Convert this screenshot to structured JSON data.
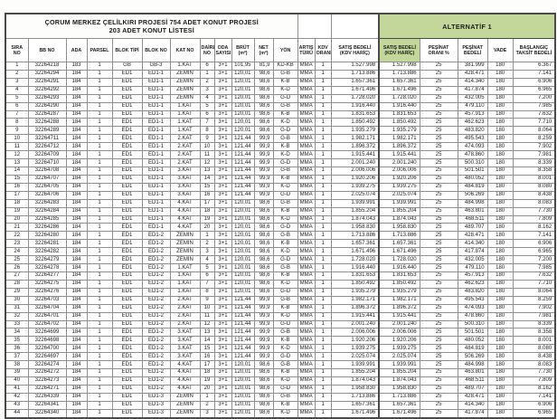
{
  "colors": {
    "alternatif_green": "#c4d79b",
    "border_dark": "#4a4a4a"
  },
  "header": {
    "title_line1": "ÇORUM MERKEZ ÇELİLKIRI PROJESİ 754 ADET KONUT PROJESİ",
    "title_line2": "203 ADET KONUT LİSTESİ",
    "alternatif_label": "ALTERNATİF 1"
  },
  "table": {
    "columns": [
      "SIRA NO",
      "BB NO",
      "ADA",
      "PARSEL",
      "BLOK TİPİ",
      "BLOK NO",
      "KAT NO",
      "DAİRE NO",
      "ODA SAYISI",
      "BRÜT (m²)",
      "NET (m²)",
      "YÖN",
      "ARTIŞ TÜRÜ",
      "KDV ORANI",
      "SATIŞ BEDELİ (KDV HARİÇ)",
      "SATIŞ BEDELİ (KDV HARİÇ)",
      "PEŞİNAT ORANI %",
      "PEŞİNAT BEDELİ",
      "VADE",
      "BAŞLANGIÇ TAKSİT BEDELİ"
    ],
    "column_keys": [
      "sira-no",
      "bb-no",
      "ada",
      "parsel",
      "blok-tipi",
      "blok-no",
      "kat-no",
      "daire-no",
      "oda-sayisi",
      "brut-m2",
      "net-m2",
      "yon",
      "artis-turu",
      "kdv-orani",
      "satis-bedeli-kdv-haric",
      "alt1-satis-bedeli-kdv-haric",
      "pesinat-orani",
      "pesinat-bedeli",
      "vade",
      "baslangic-taksit-bedeli"
    ],
    "numeric_columns": [
      9,
      10,
      14,
      15,
      17,
      19
    ],
    "alt_column": 15,
    "rows": [
      [
        "1",
        "32264218",
        "183",
        "1",
        "GB",
        "GB-3",
        "1.KAT",
        "6",
        "3+1",
        "101,95",
        "81,9",
        "KD-KB",
        "MMA",
        "1",
        "1.527.998",
        "1.527.998",
        "25",
        "381.999",
        "180",
        "6.367"
      ],
      [
        "2",
        "32264294",
        "184",
        "1",
        "ED1",
        "ED1-1",
        "ZEMİN",
        "1",
        "3+1",
        "120,01",
        "98,6",
        "G-B",
        "MMA",
        "1",
        "1.713.886",
        "1.713.886",
        "25",
        "428.471",
        "180",
        "7.141"
      ],
      [
        "3",
        "32264291",
        "184",
        "1",
        "ED1",
        "ED1-1",
        "ZEMİN",
        "2",
        "3+1",
        "120,01",
        "98,6",
        "K-B",
        "MMA",
        "1",
        "1.657.361",
        "1.657.361",
        "25",
        "414.340",
        "180",
        "6.906"
      ],
      [
        "4",
        "32264292",
        "184",
        "1",
        "ED1",
        "ED1-1",
        "ZEMİN",
        "3",
        "3+1",
        "120,01",
        "98,6",
        "K-D",
        "MMA",
        "1",
        "1.671.496",
        "1.671.496",
        "25",
        "417.874",
        "180",
        "6.965"
      ],
      [
        "5",
        "32264293",
        "184",
        "1",
        "ED1",
        "ED1-1",
        "ZEMİN",
        "4",
        "3+1",
        "120,01",
        "98,6",
        "G-D",
        "MMA",
        "1",
        "1.728.020",
        "1.728.020",
        "25",
        "432.005",
        "180",
        "7.200"
      ],
      [
        "6",
        "32264290",
        "184",
        "1",
        "ED1",
        "ED1-1",
        "1.KAT",
        "5",
        "3+1",
        "120,01",
        "98,6",
        "G-B",
        "MMA",
        "1",
        "1.916.440",
        "1.916.440",
        "25",
        "479.110",
        "180",
        "7.985"
      ],
      [
        "7",
        "32264287",
        "184",
        "1",
        "ED1",
        "ED1-1",
        "1.KAT",
        "6",
        "3+1",
        "120,01",
        "98,6",
        "K-B",
        "MMA",
        "1",
        "1.831.653",
        "1.831.653",
        "25",
        "457.913",
        "180",
        "7.632"
      ],
      [
        "8",
        "32264288",
        "184",
        "1",
        "ED1",
        "ED1-1",
        "1.KAT",
        "7",
        "3+1",
        "120,01",
        "98,6",
        "K-D",
        "MMA",
        "1",
        "1.850.492",
        "1.850.492",
        "25",
        "462.623",
        "180",
        "7.710"
      ],
      [
        "9",
        "32264289",
        "184",
        "1",
        "ED1",
        "ED1-1",
        "1.KAT",
        "8",
        "3+1",
        "120,01",
        "98,6",
        "G-D",
        "MMA",
        "1",
        "1.935.279",
        "1.935.279",
        "25",
        "483.820",
        "180",
        "8.064"
      ],
      [
        "10",
        "32264711",
        "184",
        "1",
        "ED1",
        "ED1-1",
        "2.KAT",
        "9",
        "3+1",
        "121,44",
        "99,9",
        "G-B",
        "MMA",
        "1",
        "1.982.171",
        "1.982.171",
        "25",
        "495.543",
        "180",
        "8.259"
      ],
      [
        "11",
        "32264712",
        "184",
        "1",
        "ED1",
        "ED1-1",
        "2.KAT",
        "10",
        "3+1",
        "121,44",
        "99,9",
        "K-B",
        "MMA",
        "1",
        "1.896.372",
        "1.896.372",
        "25",
        "474.093",
        "180",
        "7.902"
      ],
      [
        "12",
        "32264709",
        "184",
        "1",
        "ED1",
        "ED1-1",
        "2.KAT",
        "11",
        "3+1",
        "121,44",
        "99,9",
        "K-D",
        "MMA",
        "1",
        "1.915.441",
        "1.915.441",
        "25",
        "478.860",
        "180",
        "7.981"
      ],
      [
        "13",
        "32264710",
        "184",
        "1",
        "ED1",
        "ED1-1",
        "2.KAT",
        "12",
        "3+1",
        "121,44",
        "99,9",
        "G-D",
        "MMA",
        "1",
        "2.001.240",
        "2.001.240",
        "25",
        "500.310",
        "180",
        "8.339"
      ],
      [
        "14",
        "32264708",
        "184",
        "1",
        "ED1",
        "ED1-1",
        "3.KAT",
        "13",
        "3+1",
        "121,44",
        "99,9",
        "G-B",
        "MMA",
        "1",
        "2.006.006",
        "2.006.006",
        "25",
        "501.501",
        "180",
        "8.358"
      ],
      [
        "15",
        "32264707",
        "184",
        "1",
        "ED1",
        "ED1-1",
        "3.KAT",
        "14",
        "3+1",
        "121,44",
        "99,9",
        "K-B",
        "MMA",
        "1",
        "1.920.206",
        "1.920.206",
        "25",
        "480.052",
        "180",
        "8.001"
      ],
      [
        "16",
        "32264705",
        "184",
        "1",
        "ED1",
        "ED1-1",
        "3.KAT",
        "15",
        "3+1",
        "121,44",
        "99,9",
        "K-D",
        "MMA",
        "1",
        "1.939.275",
        "1.939.275",
        "25",
        "484.819",
        "180",
        "8.080"
      ],
      [
        "17",
        "32264706",
        "184",
        "1",
        "ED1",
        "ED1-1",
        "3.KAT",
        "16",
        "3+1",
        "121,44",
        "99,9",
        "G-D",
        "MMA",
        "1",
        "2.025.074",
        "2.025.074",
        "25",
        "506.269",
        "180",
        "8.438"
      ],
      [
        "18",
        "32264283",
        "184",
        "1",
        "ED1",
        "ED1-1",
        "4.KAT",
        "17",
        "3+1",
        "120,01",
        "98,6",
        "G-B",
        "MMA",
        "1",
        "1.939.991",
        "1.939.991",
        "25",
        "484.998",
        "180",
        "8.083"
      ],
      [
        "19",
        "32264284",
        "184",
        "1",
        "ED1",
        "ED1-1",
        "4.KAT",
        "18",
        "3+1",
        "120,01",
        "98,6",
        "K-B",
        "MMA",
        "1",
        "1.855.204",
        "1.855.204",
        "25",
        "463.801",
        "180",
        "7.730"
      ],
      [
        "20",
        "32264285",
        "184",
        "1",
        "ED1",
        "ED1-1",
        "4.KAT",
        "19",
        "3+1",
        "120,01",
        "98,6",
        "K-D",
        "MMA",
        "1",
        "1.874.043",
        "1.874.043",
        "25",
        "468.511",
        "180",
        "7.809"
      ],
      [
        "21",
        "32264286",
        "184",
        "1",
        "ED1",
        "ED1-1",
        "4.KAT",
        "20",
        "3+1",
        "120,01",
        "98,6",
        "G-D",
        "MMA",
        "1",
        "1.958.830",
        "1.958.830",
        "25",
        "489.707",
        "180",
        "8.162"
      ],
      [
        "22",
        "32264280",
        "184",
        "1",
        "ED1",
        "ED1-2",
        "ZEMİN",
        "1",
        "3+1",
        "120,01",
        "98,6",
        "G-B",
        "MMA",
        "1",
        "1.713.886",
        "1.713.886",
        "25",
        "428.471",
        "180",
        "7.141"
      ],
      [
        "23",
        "32264281",
        "184",
        "1",
        "ED1",
        "ED1-2",
        "ZEMİN",
        "2",
        "3+1",
        "120,01",
        "98,6",
        "K-B",
        "MMA",
        "1",
        "1.657.361",
        "1.657.361",
        "25",
        "414.340",
        "180",
        "6.906"
      ],
      [
        "24",
        "32264282",
        "184",
        "1",
        "ED1",
        "ED1-2",
        "ZEMİN",
        "3",
        "3+1",
        "120,01",
        "98,6",
        "K-D",
        "MMA",
        "1",
        "1.671.496",
        "1.671.496",
        "25",
        "417.874",
        "180",
        "6.965"
      ],
      [
        "25",
        "32264279",
        "184",
        "1",
        "ED1",
        "ED1-2",
        "ZEMİN",
        "4",
        "3+1",
        "120,01",
        "98,6",
        "G-D",
        "MMA",
        "1",
        "1.728.020",
        "1.728.020",
        "25",
        "432.005",
        "180",
        "7.200"
      ],
      [
        "26",
        "32264278",
        "184",
        "1",
        "ED1",
        "ED1-2",
        "1.KAT",
        "5",
        "3+1",
        "120,01",
        "98,6",
        "G-B",
        "MMA",
        "1",
        "1.916.440",
        "1.916.440",
        "25",
        "479.110",
        "180",
        "7.985"
      ],
      [
        "27",
        "32264277",
        "184",
        "1",
        "ED1",
        "ED1-2",
        "1.KAT",
        "6",
        "3+1",
        "120,01",
        "98,6",
        "K-B",
        "MMA",
        "1",
        "1.831.653",
        "1.831.653",
        "25",
        "457.913",
        "180",
        "7.632"
      ],
      [
        "28",
        "32264275",
        "184",
        "1",
        "ED1",
        "ED1-2",
        "1.KAT",
        "7",
        "3+1",
        "120,01",
        "98,6",
        "K-D",
        "MMA",
        "1",
        "1.850.492",
        "1.850.492",
        "25",
        "462.623",
        "180",
        "7.710"
      ],
      [
        "29",
        "32264276",
        "184",
        "1",
        "ED1",
        "ED1-2",
        "1.KAT",
        "8",
        "3+1",
        "120,01",
        "98,6",
        "G-D",
        "MMA",
        "1",
        "1.935.279",
        "1.935.279",
        "25",
        "483.820",
        "180",
        "8.064"
      ],
      [
        "30",
        "32264703",
        "184",
        "1",
        "ED1",
        "ED1-2",
        "2.KAT",
        "9",
        "3+1",
        "121,44",
        "99,9",
        "G-B",
        "MMA",
        "1",
        "1.982.171",
        "1.982.171",
        "25",
        "495.543",
        "180",
        "8.259"
      ],
      [
        "31",
        "32264704",
        "184",
        "1",
        "ED1",
        "ED1-2",
        "2.KAT",
        "10",
        "3+1",
        "121,44",
        "99,9",
        "K-B",
        "MMA",
        "1",
        "1.896.372",
        "1.896.372",
        "25",
        "474.093",
        "180",
        "7.902"
      ],
      [
        "32",
        "32264701",
        "184",
        "1",
        "ED1",
        "ED1-2",
        "2.KAT",
        "11",
        "3+1",
        "121,44",
        "99,9",
        "K-D",
        "MMA",
        "1",
        "1.915.441",
        "1.915.441",
        "25",
        "478.860",
        "180",
        "7.981"
      ],
      [
        "33",
        "32264702",
        "184",
        "1",
        "ED1",
        "ED1-2",
        "2.KAT",
        "12",
        "3+1",
        "121,44",
        "99,9",
        "G-D",
        "MMA",
        "1",
        "2.001.240",
        "2.001.240",
        "25",
        "500.310",
        "180",
        "8.339"
      ],
      [
        "34",
        "32264699",
        "184",
        "1",
        "ED1",
        "ED1-2",
        "3.KAT",
        "13",
        "3+1",
        "121,44",
        "99,9",
        "G-B",
        "MMA",
        "1",
        "2.006.006",
        "2.006.006",
        "25",
        "501.501",
        "180",
        "8.358"
      ],
      [
        "35",
        "32264698",
        "184",
        "1",
        "ED1",
        "ED1-2",
        "3.KAT",
        "14",
        "3+1",
        "121,44",
        "99,9",
        "K-B",
        "MMA",
        "1",
        "1.920.206",
        "1.920.206",
        "25",
        "480.052",
        "180",
        "8.001"
      ],
      [
        "36",
        "32264700",
        "184",
        "1",
        "ED1",
        "ED1-2",
        "3.KAT",
        "15",
        "3+1",
        "121,44",
        "99,9",
        "K-D",
        "MMA",
        "1",
        "1.939.275",
        "1.939.275",
        "25",
        "484.819",
        "180",
        "8.080"
      ],
      [
        "37",
        "32264697",
        "184",
        "1",
        "ED1",
        "ED1-2",
        "3.KAT",
        "16",
        "3+1",
        "121,44",
        "99,9",
        "G-D",
        "MMA",
        "1",
        "2.025.074",
        "2.025.074",
        "25",
        "506.269",
        "180",
        "8.438"
      ],
      [
        "38",
        "32264274",
        "184",
        "1",
        "ED1",
        "ED1-2",
        "4.KAT",
        "17",
        "3+1",
        "120,01",
        "98,6",
        "G-B",
        "MMA",
        "1",
        "1.939.991",
        "1.939.991",
        "25",
        "484.998",
        "180",
        "8.083"
      ],
      [
        "39",
        "32264272",
        "184",
        "1",
        "ED1",
        "ED1-2",
        "4.KAT",
        "18",
        "3+1",
        "120,01",
        "98,6",
        "K-B",
        "MMA",
        "1",
        "1.855.204",
        "1.855.204",
        "25",
        "463.801",
        "180",
        "7.730"
      ],
      [
        "40",
        "32264273",
        "184",
        "1",
        "ED1",
        "ED1-2",
        "4.KAT",
        "19",
        "3+1",
        "120,01",
        "98,6",
        "K-D",
        "MMA",
        "1",
        "1.874.043",
        "1.874.043",
        "25",
        "468.511",
        "180",
        "7.809"
      ],
      [
        "41",
        "32264271",
        "184",
        "1",
        "ED1",
        "ED1-2",
        "4.KAT",
        "20",
        "3+1",
        "120,01",
        "98,6",
        "G-D",
        "MMA",
        "1",
        "1.958.830",
        "1.958.830",
        "25",
        "489.707",
        "180",
        "8.162"
      ],
      [
        "42",
        "32264339",
        "184",
        "1",
        "ED1",
        "ED1-3",
        "ZEMİN",
        "1",
        "3+1",
        "120,01",
        "98,6",
        "G-B",
        "MMA",
        "1",
        "1.713.886",
        "1.713.886",
        "25",
        "428.471",
        "180",
        "7.141"
      ],
      [
        "43",
        "32264341",
        "184",
        "1",
        "ED1",
        "ED1-3",
        "ZEMİN",
        "2",
        "3+1",
        "120,01",
        "98,6",
        "K-B",
        "MMA",
        "1",
        "1.657.361",
        "1.657.361",
        "25",
        "414.340",
        "180",
        "6.906"
      ],
      [
        "44",
        "32264340",
        "184",
        "1",
        "ED1",
        "ED1-3",
        "ZEMİN",
        "3",
        "3+1",
        "120,01",
        "98,6",
        "K-D",
        "MMA",
        "1",
        "1.671.496",
        "1.671.496",
        "25",
        "417.874",
        "180",
        "6.965"
      ]
    ]
  }
}
